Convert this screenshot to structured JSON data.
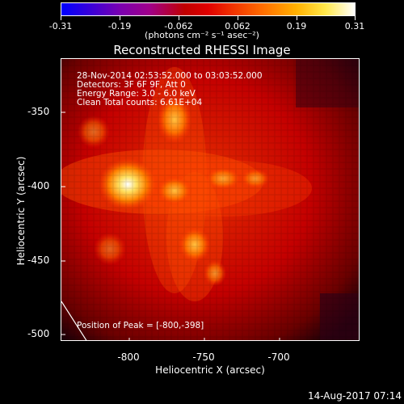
{
  "colorbar": {
    "tick_labels": [
      "-0.31",
      "-0.19",
      "-0.062",
      "0.062",
      "0.19",
      "0.31"
    ],
    "units": "(photons cm⁻² s⁻¹ asec⁻²)"
  },
  "title": "Reconstructed RHESSI Image",
  "info": {
    "time_range": "28-Nov-2014 02:53:52.000 to 03:03:52.000",
    "detectors": "Detectors: 3F 6F 9F, Att 0",
    "energy": "Energy Range: 3.0 - 6.0 keV",
    "clean": "Clean     Total counts: 6.61E+04",
    "peak": "Position of Peak = [-800,-398]"
  },
  "axes": {
    "xlabel": "Heliocentric X (arcsec)",
    "ylabel": "Heliocentric Y (arcsec)",
    "x_ticks": [
      "-800",
      "-750",
      "-700"
    ],
    "y_ticks": [
      "-350",
      "-400",
      "-450",
      "-500"
    ]
  },
  "footer": {
    "date": "14-Aug-2017 07:14"
  }
}
